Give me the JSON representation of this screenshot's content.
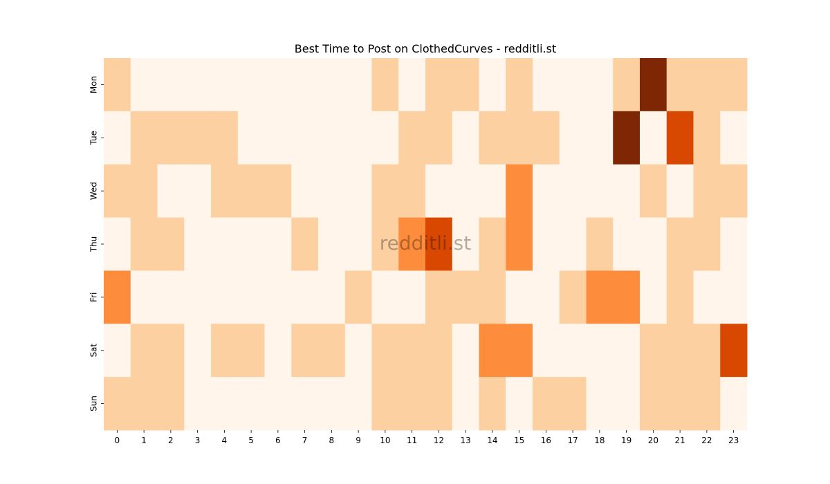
{
  "chart_data": {
    "type": "heatmap",
    "title": "Best Time to Post on ClothedCurves - redditli.st",
    "watermark": "redditli.st",
    "x_categories": [
      "0",
      "1",
      "2",
      "3",
      "4",
      "5",
      "6",
      "7",
      "8",
      "9",
      "10",
      "11",
      "12",
      "13",
      "14",
      "15",
      "16",
      "17",
      "18",
      "19",
      "20",
      "21",
      "22",
      "23"
    ],
    "y_categories": [
      "Mon",
      "Tue",
      "Wed",
      "Thu",
      "Fri",
      "Sat",
      "Sun"
    ],
    "values": [
      [
        1,
        0,
        0,
        0,
        0,
        0,
        0,
        0,
        0,
        0,
        1,
        0,
        1,
        1,
        0,
        1,
        0,
        0,
        0,
        1,
        5,
        1,
        1,
        1
      ],
      [
        0,
        1,
        1,
        1,
        1,
        0,
        0,
        0,
        0,
        0,
        0,
        1,
        1,
        0,
        1,
        1,
        1,
        0,
        0,
        5,
        0,
        4,
        1,
        0
      ],
      [
        1,
        1,
        0,
        0,
        1,
        1,
        1,
        0,
        0,
        0,
        1,
        1,
        0,
        0,
        0,
        2,
        0,
        0,
        0,
        0,
        1,
        0,
        1,
        1
      ],
      [
        0,
        1,
        1,
        0,
        0,
        0,
        0,
        1,
        0,
        0,
        1,
        2,
        4,
        0,
        1,
        2,
        0,
        0,
        1,
        0,
        0,
        1,
        1,
        0
      ],
      [
        2,
        0,
        0,
        0,
        0,
        0,
        0,
        0,
        0,
        1,
        0,
        0,
        1,
        1,
        1,
        0,
        0,
        1,
        2,
        2,
        0,
        1,
        0,
        0
      ],
      [
        0,
        1,
        1,
        0,
        1,
        1,
        0,
        1,
        1,
        0,
        1,
        1,
        1,
        0,
        2,
        2,
        0,
        0,
        0,
        0,
        1,
        1,
        1,
        4
      ],
      [
        1,
        1,
        1,
        0,
        0,
        0,
        0,
        0,
        0,
        0,
        1,
        1,
        1,
        0,
        1,
        0,
        1,
        1,
        0,
        0,
        1,
        1,
        1,
        0
      ]
    ],
    "vmin": 0,
    "vmax": 5,
    "colormap": "Oranges",
    "level_colors": [
      "#fff5eb",
      "#fdd0a2",
      "#fd8d3c",
      "#f16913",
      "#d94801",
      "#7f2704"
    ],
    "xlabel": "",
    "ylabel": "",
    "colorbar": false,
    "grid": false
  }
}
